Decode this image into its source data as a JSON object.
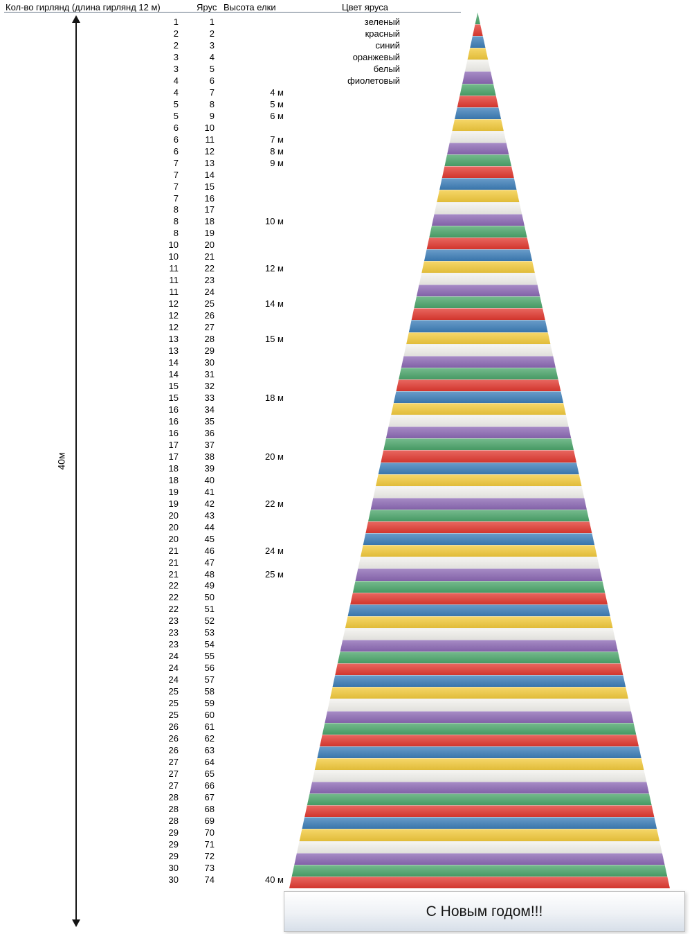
{
  "header": {
    "col_garlands": "Кол-во гирлянд (длина гирлянд 12 м)",
    "col_tier": "Ярус",
    "col_height": "Высота елки",
    "col_color": "Цвет яруса"
  },
  "arrow_label": "40м",
  "banner_text": "С Новым годом!!!",
  "colors": {
    "green": "#4ca56b",
    "red": "#e13a31",
    "blue": "#3d7eb8",
    "orange": "#f2ca3d",
    "white": "#f2f1ed",
    "violet": "#8c69b4"
  },
  "color_cycle": [
    "green",
    "red",
    "blue",
    "orange",
    "white",
    "violet"
  ],
  "color_labels": [
    "зеленый",
    "красный",
    "синий",
    "оранжевый",
    "белый",
    "фиолетовый"
  ],
  "rows": [
    {
      "garlands": "1",
      "tier": "1"
    },
    {
      "garlands": "2",
      "tier": "2"
    },
    {
      "garlands": "2",
      "tier": "3"
    },
    {
      "garlands": "3",
      "tier": "4"
    },
    {
      "garlands": "3",
      "tier": "5"
    },
    {
      "garlands": "4",
      "tier": "6"
    },
    {
      "garlands": "4",
      "tier": "7",
      "height": "4 м"
    },
    {
      "garlands": "5",
      "tier": "8",
      "height": "5 м"
    },
    {
      "garlands": "5",
      "tier": "9",
      "height": "6 м"
    },
    {
      "garlands": "6",
      "tier": "10"
    },
    {
      "garlands": "6",
      "tier": "11",
      "height": "7 м"
    },
    {
      "garlands": "6",
      "tier": "12",
      "height": "8 м"
    },
    {
      "garlands": "7",
      "tier": "13",
      "height": "9 м"
    },
    {
      "garlands": "7",
      "tier": "14"
    },
    {
      "garlands": "7",
      "tier": "15"
    },
    {
      "garlands": "7",
      "tier": "16"
    },
    {
      "garlands": "8",
      "tier": "17"
    },
    {
      "garlands": "8",
      "tier": "18",
      "height": "10 м"
    },
    {
      "garlands": "8",
      "tier": "19"
    },
    {
      "garlands": "10",
      "tier": "20"
    },
    {
      "garlands": "10",
      "tier": "21"
    },
    {
      "garlands": "11",
      "tier": "22",
      "height": "12 м"
    },
    {
      "garlands": "11",
      "tier": "23"
    },
    {
      "garlands": "11",
      "tier": "24"
    },
    {
      "garlands": "12",
      "tier": "25",
      "height": "14 м"
    },
    {
      "garlands": "12",
      "tier": "26"
    },
    {
      "garlands": "12",
      "tier": "27"
    },
    {
      "garlands": "13",
      "tier": "28",
      "height": "15 м"
    },
    {
      "garlands": "13",
      "tier": "29"
    },
    {
      "garlands": "14",
      "tier": "30"
    },
    {
      "garlands": "14",
      "tier": "31"
    },
    {
      "garlands": "15",
      "tier": "32"
    },
    {
      "garlands": "15",
      "tier": "33",
      "height": "18 м"
    },
    {
      "garlands": "16",
      "tier": "34"
    },
    {
      "garlands": "16",
      "tier": "35"
    },
    {
      "garlands": "16",
      "tier": "36"
    },
    {
      "garlands": "17",
      "tier": "37"
    },
    {
      "garlands": "17",
      "tier": "38",
      "height": "20 м"
    },
    {
      "garlands": "18",
      "tier": "39"
    },
    {
      "garlands": "18",
      "tier": "40"
    },
    {
      "garlands": "19",
      "tier": "41"
    },
    {
      "garlands": "19",
      "tier": "42",
      "height": "22 м"
    },
    {
      "garlands": "20",
      "tier": "43"
    },
    {
      "garlands": "20",
      "tier": "44"
    },
    {
      "garlands": "20",
      "tier": "45"
    },
    {
      "garlands": "21",
      "tier": "46",
      "height": "24 м"
    },
    {
      "garlands": "21",
      "tier": "47"
    },
    {
      "garlands": "21",
      "tier": "48",
      "height": "25 м"
    },
    {
      "garlands": "22",
      "tier": "49"
    },
    {
      "garlands": "22",
      "tier": "50"
    },
    {
      "garlands": "22",
      "tier": "51"
    },
    {
      "garlands": "23",
      "tier": "52"
    },
    {
      "garlands": "23",
      "tier": "53"
    },
    {
      "garlands": "23",
      "tier": "54"
    },
    {
      "garlands": "24",
      "tier": "55"
    },
    {
      "garlands": "24",
      "tier": "56"
    },
    {
      "garlands": "24",
      "tier": "57"
    },
    {
      "garlands": "25",
      "tier": "58"
    },
    {
      "garlands": "25",
      "tier": "59"
    },
    {
      "garlands": "25",
      "tier": "60"
    },
    {
      "garlands": "26",
      "tier": "61"
    },
    {
      "garlands": "26",
      "tier": "62"
    },
    {
      "garlands": "26",
      "tier": "63"
    },
    {
      "garlands": "27",
      "tier": "64"
    },
    {
      "garlands": "27",
      "tier": "65"
    },
    {
      "garlands": "27",
      "tier": "66"
    },
    {
      "garlands": "28",
      "tier": "67"
    },
    {
      "garlands": "28",
      "tier": "68"
    },
    {
      "garlands": "28",
      "tier": "69"
    },
    {
      "garlands": "29",
      "tier": "70"
    },
    {
      "garlands": "29",
      "tier": "71"
    },
    {
      "garlands": "29",
      "tier": "72"
    },
    {
      "garlands": "30",
      "tier": "73"
    },
    {
      "garlands": "30",
      "tier": "74",
      "height": "40 м"
    }
  ]
}
